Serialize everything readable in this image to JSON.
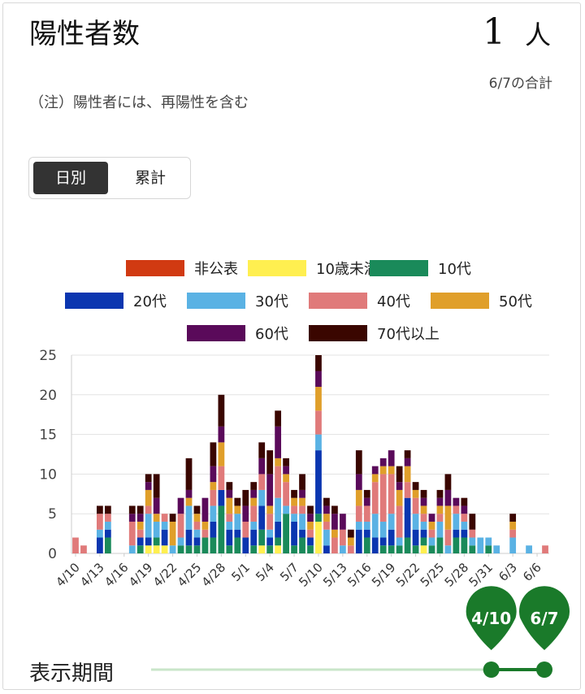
{
  "header": {
    "title": "陽性者数",
    "total_value": "1",
    "total_unit": "人",
    "total_date": "6/7の合計",
    "note": "（注）陽性者には、再陽性を含む"
  },
  "toggle": {
    "daily_label": "日別",
    "cumulative_label": "累計",
    "selected": "daily"
  },
  "period": {
    "label": "表示期間",
    "start_label": "4/10",
    "end_label": "6/7",
    "range_start": 0,
    "range_end": 1,
    "marker_color": "#1a7a2a"
  },
  "chart_data": {
    "type": "bar",
    "stacked": true,
    "ylim": [
      0,
      25
    ],
    "yticks": [
      0,
      5,
      10,
      15,
      20,
      25
    ],
    "grid": true,
    "legend_position": "top",
    "xtick_labels": [
      "4/10",
      "4/13",
      "4/16",
      "4/19",
      "4/22",
      "4/25",
      "4/28",
      "5/1",
      "5/4",
      "5/7",
      "5/10",
      "5/13",
      "5/16",
      "5/19",
      "5/22",
      "5/25",
      "5/28",
      "5/31",
      "6/3",
      "6/6"
    ],
    "categories": [
      "4/10",
      "4/11",
      "4/12",
      "4/13",
      "4/14",
      "4/15",
      "4/16",
      "4/17",
      "4/18",
      "4/19",
      "4/20",
      "4/21",
      "4/22",
      "4/23",
      "4/24",
      "4/25",
      "4/26",
      "4/27",
      "4/28",
      "4/29",
      "4/30",
      "5/1",
      "5/2",
      "5/3",
      "5/4",
      "5/5",
      "5/6",
      "5/7",
      "5/8",
      "5/9",
      "5/10",
      "5/11",
      "5/12",
      "5/13",
      "5/14",
      "5/15",
      "5/16",
      "5/17",
      "5/18",
      "5/19",
      "5/20",
      "5/21",
      "5/22",
      "5/23",
      "5/24",
      "5/25",
      "5/26",
      "5/27",
      "5/28",
      "5/29",
      "5/30",
      "5/31",
      "6/1",
      "6/2",
      "6/3",
      "6/4",
      "6/5",
      "6/6",
      "6/7"
    ],
    "series": [
      {
        "name": "非公表",
        "color": "#d13a12",
        "values": [
          0,
          0,
          0,
          0,
          0,
          0,
          0,
          0,
          0,
          0,
          0,
          0,
          0,
          0,
          0,
          0,
          0,
          0,
          0,
          0,
          0,
          0,
          0,
          0,
          0,
          0,
          0,
          0,
          0,
          0,
          0,
          0,
          0,
          0,
          0,
          0,
          0,
          0,
          0,
          0,
          0,
          0,
          0,
          0,
          0,
          0,
          0,
          0,
          0,
          0,
          0,
          0,
          0,
          0,
          0,
          0,
          0,
          0,
          0
        ]
      },
      {
        "name": "10歳未満",
        "color": "#ffef50",
        "values": [
          0,
          0,
          0,
          0,
          0,
          0,
          0,
          0,
          0,
          1,
          1,
          1,
          0,
          0,
          0,
          0,
          0,
          0,
          0,
          0,
          0,
          0,
          0,
          1,
          0,
          1,
          0,
          0,
          0,
          0,
          4,
          0,
          0,
          0,
          0,
          0,
          0,
          0,
          0,
          0,
          0,
          0,
          0,
          1,
          0,
          0,
          0,
          0,
          0,
          0,
          0,
          0,
          0,
          0,
          0,
          0,
          0,
          0,
          0
        ]
      },
      {
        "name": "10代",
        "color": "#1a8a5a",
        "values": [
          0,
          0,
          0,
          0,
          2,
          0,
          0,
          0,
          1,
          0,
          1,
          0,
          0,
          1,
          1,
          1,
          2,
          2,
          6,
          1,
          2,
          0,
          1,
          2,
          1,
          1,
          5,
          1,
          2,
          1,
          1,
          0,
          0,
          0,
          0,
          0,
          2,
          0,
          1,
          1,
          1,
          2,
          1,
          1,
          1,
          2,
          0,
          2,
          2,
          1,
          0,
          1,
          0,
          0,
          0,
          0,
          0,
          0,
          0
        ]
      },
      {
        "name": "20代",
        "color": "#0b36b0",
        "values": [
          0,
          0,
          0,
          2,
          1,
          0,
          0,
          0,
          1,
          1,
          0,
          2,
          0,
          0,
          2,
          1,
          0,
          2,
          2,
          2,
          1,
          2,
          2,
          3,
          1,
          2,
          0,
          3,
          1,
          1,
          8,
          1,
          0,
          0,
          0,
          3,
          1,
          2,
          1,
          2,
          0,
          5,
          2,
          1,
          0,
          0,
          0,
          1,
          1,
          0,
          0,
          0,
          0,
          0,
          0,
          0,
          0,
          0,
          0
        ]
      },
      {
        "name": "30代",
        "color": "#5ab2e4",
        "values": [
          0,
          0,
          0,
          1,
          1,
          0,
          0,
          1,
          0,
          3,
          2,
          1,
          1,
          1,
          3,
          1,
          0,
          2,
          0,
          1,
          2,
          0,
          1,
          2,
          1,
          3,
          1,
          1,
          2,
          0,
          2,
          2,
          0,
          1,
          0,
          1,
          1,
          3,
          2,
          2,
          1,
          0,
          2,
          1,
          1,
          2,
          1,
          2,
          1,
          1,
          2,
          1,
          1,
          0,
          2,
          0,
          1,
          0,
          0
        ]
      },
      {
        "name": "40代",
        "color": "#e07a7a",
        "values": [
          2,
          1,
          0,
          2,
          1,
          0,
          0,
          3,
          1,
          1,
          0,
          1,
          0,
          3,
          0,
          1,
          1,
          2,
          3,
          1,
          0,
          2,
          2,
          2,
          2,
          4,
          3,
          1,
          1,
          1,
          3,
          1,
          2,
          2,
          1,
          2,
          2,
          4,
          6,
          5,
          4,
          2,
          2,
          1,
          1,
          1,
          2,
          1,
          1,
          1,
          0,
          0,
          0,
          0,
          1,
          0,
          0,
          0,
          1
        ]
      },
      {
        "name": "50代",
        "color": "#e09f2a",
        "values": [
          0,
          0,
          0,
          0,
          0,
          0,
          0,
          0,
          1,
          2,
          1,
          0,
          3,
          0,
          1,
          1,
          1,
          1,
          3,
          2,
          1,
          0,
          1,
          0,
          1,
          1,
          1,
          1,
          1,
          1,
          3,
          1,
          1,
          0,
          1,
          2,
          0,
          1,
          1,
          1,
          2,
          2,
          1,
          1,
          1,
          1,
          3,
          0,
          0,
          0,
          0,
          0,
          0,
          0,
          1,
          0,
          0,
          0,
          0
        ]
      },
      {
        "name": "60代",
        "color": "#5a0a5a",
        "values": [
          0,
          0,
          0,
          0,
          0,
          0,
          0,
          1,
          1,
          1,
          2,
          0,
          0,
          2,
          1,
          0,
          3,
          2,
          2,
          1,
          0,
          2,
          1,
          2,
          4,
          4,
          1,
          0,
          1,
          1,
          2,
          1,
          2,
          2,
          0,
          2,
          1,
          1,
          1,
          2,
          1,
          1,
          0,
          1,
          1,
          1,
          2,
          1,
          1,
          0,
          0,
          0,
          0,
          0,
          0,
          0,
          0,
          0,
          0
        ]
      },
      {
        "name": "70代以上",
        "color": "#3a0600",
        "values": [
          0,
          0,
          0,
          1,
          1,
          0,
          0,
          1,
          1,
          1,
          3,
          0,
          1,
          0,
          4,
          1,
          0,
          3,
          4,
          1,
          1,
          2,
          1,
          2,
          3,
          2,
          1,
          1,
          2,
          1,
          2,
          1,
          1,
          0,
          1,
          3,
          1,
          0,
          0,
          0,
          2,
          1,
          1,
          1,
          0,
          1,
          2,
          0,
          1,
          2,
          0,
          0,
          0,
          0,
          1,
          0,
          0,
          0,
          0
        ]
      }
    ]
  }
}
